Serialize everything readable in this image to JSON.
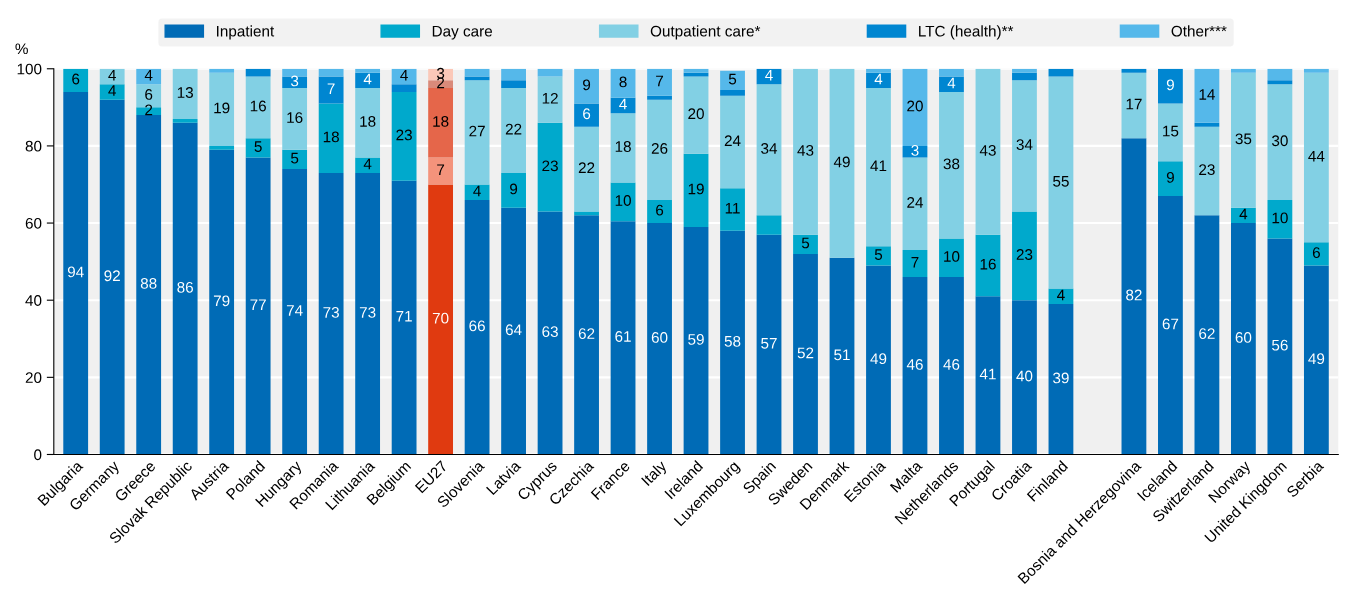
{
  "chart_data": {
    "type": "bar",
    "stacked": true,
    "ylabel": "%",
    "ylim": [
      0,
      100
    ],
    "yticks": [
      0,
      20,
      40,
      60,
      80,
      100
    ],
    "grid": "y",
    "legend": "top",
    "categories": [
      "Bulgaria",
      "Germany",
      "Greece",
      "Slovak Republic",
      "Austria",
      "Poland",
      "Hungary",
      "Romania",
      "Lithuania",
      "Belgium",
      "EU27",
      "Slovenia",
      "Latvia",
      "Cyprus",
      "Czechia",
      "France",
      "Italy",
      "Ireland",
      "Luxembourg",
      "Spain",
      "Sweden",
      "Denmark",
      "Estonia",
      "Malta",
      "Netherlands",
      "Portugal",
      "Croatia",
      "Finland",
      null,
      "Bosnia and Herzegovina",
      "Iceland",
      "Switzerland",
      "Norway",
      "United Kingdom",
      "Serbia"
    ],
    "series": [
      {
        "name": "Inpatient",
        "color": "#006bb6",
        "colors": [
          "#006bb6",
          "#006bb6",
          "#006bb6",
          "#006bb6",
          "#006bb6",
          "#006bb6",
          "#006bb6",
          "#006bb6",
          "#006bb6",
          "#006bb6",
          "#e03a10",
          "#006bb6",
          "#006bb6",
          "#006bb6",
          "#006bb6",
          "#006bb6",
          "#006bb6",
          "#006bb6",
          "#006bb6",
          "#006bb6",
          "#006bb6",
          "#006bb6",
          "#006bb6",
          "#006bb6",
          "#006bb6",
          "#006bb6",
          "#006bb6",
          "#006bb6",
          "#006bb6",
          "#006bb6",
          "#006bb6",
          "#006bb6",
          "#006bb6",
          "#006bb6",
          "#006bb6"
        ],
        "values": [
          94,
          92,
          88,
          86,
          79,
          77,
          74,
          73,
          73,
          71,
          70,
          66,
          64,
          63,
          62,
          60.5,
          60,
          59,
          58,
          57,
          52,
          51,
          49,
          46,
          46,
          41,
          40,
          39,
          null,
          82,
          67,
          62,
          60,
          56,
          49
        ],
        "value_labels": [
          "94",
          "92",
          "88",
          "86",
          "79",
          "77",
          "74",
          "73",
          "73",
          "71",
          "70",
          "66",
          "64",
          "63",
          "62",
          "61",
          "60",
          "59",
          "58",
          "57",
          "52",
          "51",
          "49",
          "46",
          "46",
          "41",
          "40",
          "39",
          null,
          "82",
          "67",
          "62",
          "60",
          "56",
          "49"
        ]
      },
      {
        "name": "Day care",
        "color": "#00a9cc",
        "colors": [
          "#00a9cc",
          "#00a9cc",
          "#00a9cc",
          "#00a9cc",
          "#00a9cc",
          "#00a9cc",
          "#00a9cc",
          "#00a9cc",
          "#00a9cc",
          "#00a9cc",
          "#f4937b",
          "#00a9cc",
          "#00a9cc",
          "#00a9cc",
          "#00a9cc",
          "#00a9cc",
          "#00a9cc",
          "#00a9cc",
          "#00a9cc",
          "#00a9cc",
          "#00a9cc",
          "#00a9cc",
          "#00a9cc",
          "#00a9cc",
          "#00a9cc",
          "#00a9cc",
          "#00a9cc",
          "#00a9cc",
          "#00a9cc",
          "#00a9cc",
          "#00a9cc",
          "#00a9cc",
          "#00a9cc",
          "#00a9cc",
          "#00a9cc"
        ],
        "values": [
          6,
          4,
          2,
          1,
          1,
          5,
          5,
          18,
          4,
          23,
          7,
          4,
          9,
          23,
          1,
          10,
          6,
          19,
          11,
          5,
          5,
          0,
          5,
          7,
          10,
          16,
          23,
          4,
          null,
          0,
          9,
          0,
          4,
          10,
          6
        ],
        "value_labels": [
          "6",
          "4",
          "2",
          null,
          null,
          "5",
          "5",
          "18",
          "4",
          "23",
          "7",
          "4",
          "9",
          "23",
          null,
          "10",
          "6",
          "19",
          "11",
          null,
          "5",
          null,
          "5",
          "7",
          "10",
          "16",
          "23",
          "4",
          null,
          null,
          "9",
          null,
          "4",
          "10",
          "6"
        ]
      },
      {
        "name": "Outpatient care*",
        "color": "#82d0e4",
        "colors": [
          "#82d0e4",
          "#82d0e4",
          "#82d0e4",
          "#82d0e4",
          "#82d0e4",
          "#82d0e4",
          "#82d0e4",
          "#82d0e4",
          "#82d0e4",
          "#82d0e4",
          "#e5664a",
          "#82d0e4",
          "#82d0e4",
          "#82d0e4",
          "#82d0e4",
          "#82d0e4",
          "#82d0e4",
          "#82d0e4",
          "#82d0e4",
          "#82d0e4",
          "#82d0e4",
          "#82d0e4",
          "#82d0e4",
          "#82d0e4",
          "#82d0e4",
          "#82d0e4",
          "#82d0e4",
          "#82d0e4",
          "#82d0e4",
          "#82d0e4",
          "#82d0e4",
          "#82d0e4",
          "#82d0e4",
          "#82d0e4",
          "#82d0e4"
        ],
        "values": [
          0,
          4,
          6,
          13,
          19,
          16,
          16,
          0,
          18,
          0,
          18,
          27,
          22,
          12,
          22,
          18,
          26,
          20,
          24,
          34,
          43,
          49,
          41,
          24,
          38,
          43,
          34,
          55,
          null,
          17,
          15,
          23,
          35,
          30,
          44
        ],
        "value_labels": [
          null,
          "4",
          "6",
          "13",
          "19",
          "16",
          "16",
          null,
          "18",
          null,
          "18",
          "27",
          "22",
          "12",
          "22",
          "18",
          "26",
          "20",
          "24",
          "34",
          "43",
          "49",
          "41",
          "24",
          "38",
          "43",
          "34",
          "55",
          null,
          "17",
          "15",
          "23",
          "35",
          "30",
          "44"
        ]
      },
      {
        "name": "LTC (health)**",
        "color": "#0086d1",
        "colors": [
          "#0086d1",
          "#0086d1",
          "#0086d1",
          "#0086d1",
          "#0086d1",
          "#0086d1",
          "#0086d1",
          "#0086d1",
          "#0086d1",
          "#0086d1",
          "#d98a7a",
          "#0086d1",
          "#0086d1",
          "#0086d1",
          "#0086d1",
          "#0086d1",
          "#0086d1",
          "#0086d1",
          "#0086d1",
          "#0086d1",
          "#0086d1",
          "#0086d1",
          "#0086d1",
          "#0086d1",
          "#0086d1",
          "#0086d1",
          "#0086d1",
          "#0086d1",
          "#0086d1",
          "#0086d1",
          "#0086d1",
          "#0086d1",
          "#0086d1",
          "#0086d1",
          "#0086d1"
        ],
        "values": [
          0,
          0,
          0,
          0,
          0,
          2,
          3,
          7,
          4,
          2,
          2,
          1,
          2,
          0,
          6,
          4,
          1,
          1,
          1.5,
          4,
          0,
          0,
          4,
          3,
          4,
          0,
          2,
          2,
          null,
          1,
          9,
          1,
          0,
          1,
          0
        ],
        "value_labels": [
          null,
          null,
          null,
          null,
          null,
          null,
          "3",
          "7",
          "4",
          null,
          "2",
          null,
          null,
          null,
          "6",
          "4",
          null,
          null,
          null,
          "4",
          null,
          null,
          "4",
          "3",
          "4",
          null,
          null,
          null,
          null,
          null,
          "9",
          null,
          null,
          null,
          null
        ]
      },
      {
        "name": "Other***",
        "color": "#55b8ea",
        "colors": [
          "#55b8ea",
          "#55b8ea",
          "#55b8ea",
          "#55b8ea",
          "#55b8ea",
          "#55b8ea",
          "#55b8ea",
          "#55b8ea",
          "#55b8ea",
          "#55b8ea",
          "#fbc8b8",
          "#55b8ea",
          "#55b8ea",
          "#55b8ea",
          "#55b8ea",
          "#55b8ea",
          "#55b8ea",
          "#55b8ea",
          "#55b8ea",
          "#55b8ea",
          "#55b8ea",
          "#55b8ea",
          "#55b8ea",
          "#55b8ea",
          "#55b8ea",
          "#55b8ea",
          "#55b8ea",
          "#55b8ea",
          "#55b8ea",
          "#55b8ea",
          "#55b8ea",
          "#55b8ea",
          "#55b8ea",
          "#55b8ea",
          "#55b8ea"
        ],
        "values": [
          0,
          0,
          4,
          0,
          1,
          0,
          2,
          2,
          1,
          4,
          3,
          2,
          3,
          2,
          9,
          7.5,
          7,
          1,
          5,
          0,
          0,
          0,
          1,
          20,
          2,
          0,
          1,
          0,
          null,
          0,
          0,
          14,
          1,
          3,
          1
        ],
        "value_labels": [
          null,
          null,
          "4",
          null,
          null,
          null,
          null,
          null,
          null,
          "4",
          "3",
          null,
          null,
          null,
          "9",
          "8",
          "7",
          null,
          "5",
          null,
          null,
          null,
          null,
          "20",
          null,
          null,
          null,
          null,
          null,
          null,
          null,
          "14",
          null,
          null,
          null
        ]
      }
    ]
  }
}
